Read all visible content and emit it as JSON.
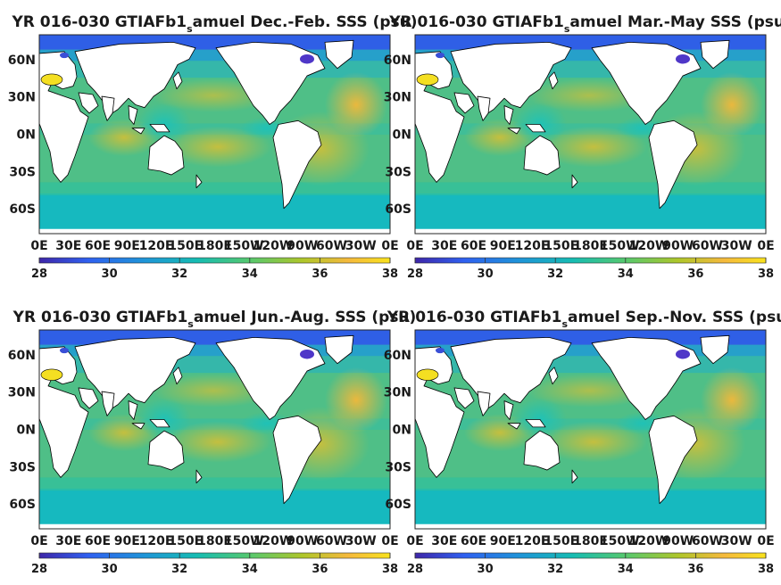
{
  "chart_data": [
    {
      "type": "heatmap",
      "title_main": "YR 016-030 GTIAFb1",
      "title_sub": "s",
      "title_rest": "amuel Dec.-Feb. SSS (psu)",
      "season": "Dec.-Feb.",
      "x_ticks": [
        "0E",
        "30E",
        "60E",
        "90E",
        "120E",
        "150E",
        "180E",
        "150W",
        "120W",
        "90W",
        "60W",
        "30W",
        "0E"
      ],
      "y_ticks": [
        "60N",
        "30N",
        "0N",
        "30S",
        "60S"
      ],
      "colorbar": {
        "ticks": [
          "28",
          "30",
          "32",
          "34",
          "36",
          "38"
        ],
        "range": [
          28,
          38
        ]
      }
    },
    {
      "type": "heatmap",
      "title_main": "YR 016-030 GTIAFb1",
      "title_sub": "s",
      "title_rest": "amuel Mar.-May SSS (psu)",
      "season": "Mar.-May",
      "x_ticks": [
        "0E",
        "30E",
        "60E",
        "90E",
        "120E",
        "150E",
        "180E",
        "150W",
        "120W",
        "90W",
        "60W",
        "30W",
        "0E"
      ],
      "y_ticks": [
        "60N",
        "30N",
        "0N",
        "30S",
        "60S"
      ],
      "colorbar": {
        "ticks": [
          "28",
          "30",
          "32",
          "34",
          "36",
          "38"
        ],
        "range": [
          28,
          38
        ]
      }
    },
    {
      "type": "heatmap",
      "title_main": "YR 016-030 GTIAFb1",
      "title_sub": "s",
      "title_rest": "amuel Jun.-Aug. SSS (psu)",
      "season": "Jun.-Aug.",
      "x_ticks": [
        "0E",
        "30E",
        "60E",
        "90E",
        "120E",
        "150E",
        "180E",
        "150W",
        "120W",
        "90W",
        "60W",
        "30W",
        "0E"
      ],
      "y_ticks": [
        "60N",
        "30N",
        "0N",
        "30S",
        "60S"
      ],
      "colorbar": {
        "ticks": [
          "28",
          "30",
          "32",
          "34",
          "36",
          "38"
        ],
        "range": [
          28,
          38
        ]
      }
    },
    {
      "type": "heatmap",
      "title_main": "YR 016-030 GTIAFb1",
      "title_sub": "s",
      "title_rest": "amuel Sep.-Nov. SSS (psu)",
      "season": "Sep.-Nov.",
      "x_ticks": [
        "0E",
        "30E",
        "60E",
        "90E",
        "120E",
        "150E",
        "180E",
        "150W",
        "120W",
        "90W",
        "60W",
        "30W",
        "0E"
      ],
      "y_ticks": [
        "60N",
        "30N",
        "0N",
        "30S",
        "60S"
      ],
      "colorbar": {
        "ticks": [
          "28",
          "30",
          "32",
          "34",
          "36",
          "38"
        ],
        "range": [
          28,
          38
        ]
      }
    }
  ],
  "colors": {
    "land": "#ffffff",
    "coast": "#000000",
    "colormap": [
      "#3e26a8",
      "#2f60f0",
      "#1e95d8",
      "#16bcb2",
      "#56c86e",
      "#aec62a",
      "#f5b93c",
      "#f8e21d"
    ]
  }
}
